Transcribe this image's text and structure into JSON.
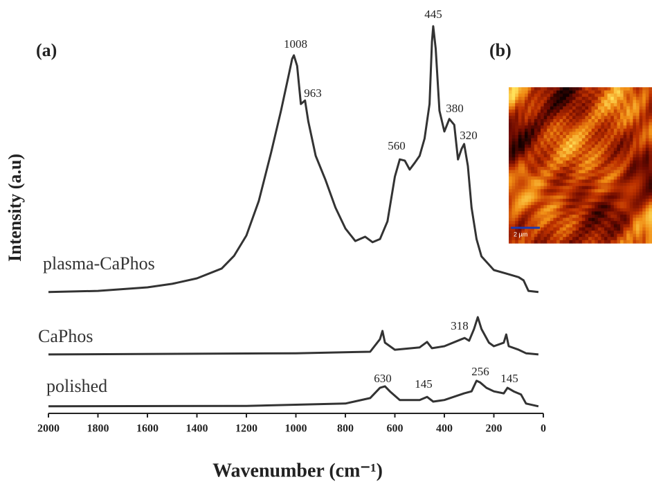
{
  "chart_data": {
    "type": "line",
    "x_label": "Wavenumber (cm⁻¹)",
    "y_label": "Intensity (a.u)",
    "panel_labels": [
      "(a)",
      "(b)"
    ],
    "inset_scale_label": "2 µm",
    "xlim": [
      2000,
      0
    ],
    "xticks": [
      2000,
      1800,
      1600,
      1400,
      1200,
      1000,
      800,
      600,
      400,
      200,
      0
    ],
    "ylim": [
      0,
      100
    ],
    "series": [
      {
        "name": "plasma-CaPhos",
        "color": "#333333",
        "x": [
          2000,
          1800,
          1600,
          1500,
          1400,
          1300,
          1250,
          1200,
          1150,
          1100,
          1060,
          1030,
          1015,
          1008,
          995,
          980,
          963,
          950,
          920,
          880,
          840,
          800,
          760,
          720,
          690,
          660,
          630,
          600,
          580,
          560,
          540,
          520,
          500,
          480,
          460,
          450,
          445,
          435,
          420,
          400,
          380,
          360,
          345,
          330,
          320,
          305,
          290,
          270,
          250,
          200,
          150,
          100,
          80,
          60,
          20
        ],
        "values": [
          30.9,
          31.2,
          32.1,
          33.0,
          34.4,
          36.9,
          40.1,
          45.3,
          54.1,
          66.5,
          77.1,
          85.9,
          90.3,
          91.2,
          88.5,
          78.8,
          79.7,
          74.4,
          65.6,
          59.4,
          52.4,
          47.1,
          43.9,
          45.0,
          43.6,
          44.4,
          48.9,
          60.3,
          64.7,
          64.4,
          62.1,
          63.8,
          65.6,
          70.0,
          78.8,
          94.7,
          98.6,
          92.9,
          77.1,
          71.8,
          75.0,
          73.5,
          64.7,
          67.4,
          68.6,
          63.0,
          52.4,
          44.4,
          40.0,
          36.5,
          35.6,
          34.7,
          33.9,
          31.2,
          30.9
        ]
      },
      {
        "name": "CaPhos",
        "color": "#333333",
        "x": [
          2000,
          1000,
          700,
          660,
          650,
          640,
          600,
          500,
          470,
          450,
          400,
          330,
          318,
          300,
          280,
          265,
          250,
          220,
          200,
          160,
          150,
          140,
          100,
          70,
          20
        ],
        "values": [
          15.0,
          15.3,
          15.7,
          18.9,
          21.0,
          18.0,
          16.2,
          16.8,
          18.2,
          16.6,
          17.1,
          18.9,
          19.2,
          18.5,
          21.5,
          24.5,
          21.5,
          18.0,
          17.1,
          18.0,
          20.1,
          17.1,
          16.2,
          15.3,
          15.0
        ]
      },
      {
        "name": "polished",
        "color": "#333333",
        "x": [
          2000,
          1200,
          800,
          700,
          660,
          640,
          620,
          580,
          500,
          470,
          445,
          400,
          320,
          290,
          270,
          256,
          230,
          200,
          160,
          145,
          120,
          90,
          70,
          20
        ],
        "values": [
          1.8,
          1.9,
          2.5,
          3.9,
          6.5,
          6.9,
          5.6,
          3.4,
          3.4,
          4.2,
          3.0,
          3.4,
          5.1,
          5.6,
          8.3,
          7.9,
          6.5,
          5.6,
          5.1,
          6.5,
          5.6,
          4.8,
          2.5,
          1.8
        ]
      }
    ],
    "annotations": [
      "1008",
      "963",
      "445",
      "380",
      "320",
      "560",
      "318",
      "630",
      "145",
      "256",
      "145"
    ]
  }
}
